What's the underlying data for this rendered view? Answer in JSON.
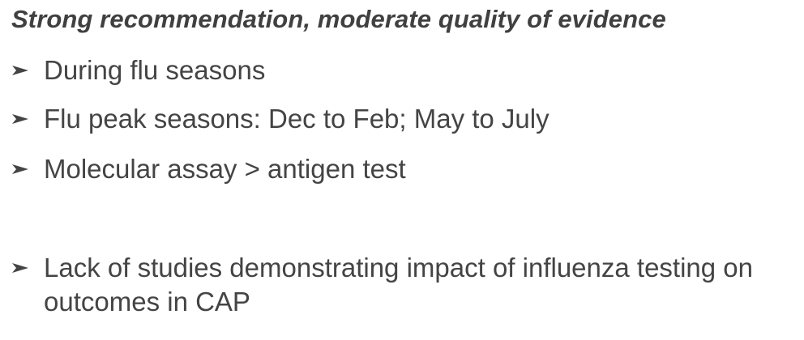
{
  "heading": "Strong recommendation, moderate quality of evidence",
  "bullets": [
    {
      "icon": "arrowhead-bullet-icon",
      "text": "During flu seasons"
    },
    {
      "icon": "arrowhead-bullet-icon",
      "text": "Flu peak seasons: Dec to Feb; May to July"
    },
    {
      "icon": "arrowhead-bullet-icon",
      "text": "Molecular assay > antigen test"
    },
    {
      "icon": "arrowhead-bullet-icon",
      "text": "Lack of studies demonstrating impact of influenza testing on outcomes in CAP"
    }
  ],
  "colors": {
    "text": "#444444",
    "heading": "#404040",
    "background": "#ffffff"
  }
}
